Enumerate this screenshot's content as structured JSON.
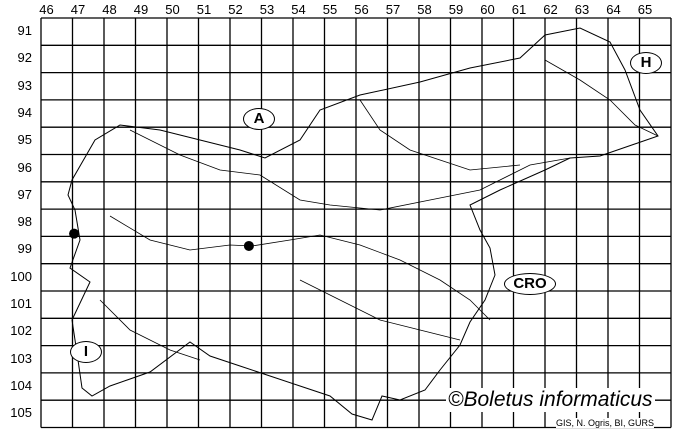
{
  "grid": {
    "columns": [
      "46",
      "47",
      "48",
      "49",
      "50",
      "51",
      "52",
      "53",
      "54",
      "55",
      "56",
      "57",
      "58",
      "59",
      "60",
      "61",
      "62",
      "63",
      "64",
      "65"
    ],
    "rows": [
      "91",
      "92",
      "93",
      "94",
      "95",
      "96",
      "97",
      "98",
      "99",
      "100",
      "101",
      "102",
      "103",
      "104",
      "105"
    ]
  },
  "region_labels": {
    "austria": "A",
    "hungary": "H",
    "croatia": "CRO",
    "italy": "I"
  },
  "occurrences": [
    {
      "column": "47",
      "row": "98"
    },
    {
      "column": "52",
      "row": "99"
    }
  ],
  "credit": "©Boletus informaticus",
  "source": "GIS, N. Ogris, BI, GURS",
  "colors": {
    "lines": "#000000",
    "points": "#000000",
    "background": "#ffffff"
  }
}
